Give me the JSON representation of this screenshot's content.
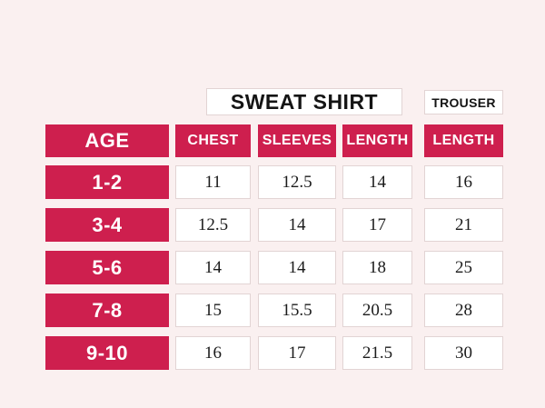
{
  "colors": {
    "background": "#FAF0F0",
    "accent": "#CE1F4E",
    "cell_border": "#E2D4D4",
    "number_text": "#1B1B1B",
    "dark_text": "#141414",
    "light_text": "#FFFFFF"
  },
  "group_headers": {
    "sweatshirt": "SWEAT SHIRT",
    "trouser": "TROUSER"
  },
  "table": {
    "columns": [
      "AGE",
      "CHEST",
      "SLEEVES",
      "LENGTH",
      "LENGTH"
    ],
    "rows": [
      {
        "age": "1-2",
        "values": [
          "11",
          "12.5",
          "14",
          "16"
        ]
      },
      {
        "age": "3-4",
        "values": [
          "12.5",
          "14",
          "17",
          "21"
        ]
      },
      {
        "age": "5-6",
        "values": [
          "14",
          "14",
          "18",
          "25"
        ]
      },
      {
        "age": "7-8",
        "values": [
          "15",
          "15.5",
          "20.5",
          "28"
        ]
      },
      {
        "age": "9-10",
        "values": [
          "16",
          "17",
          "21.5",
          "30"
        ]
      }
    ]
  }
}
